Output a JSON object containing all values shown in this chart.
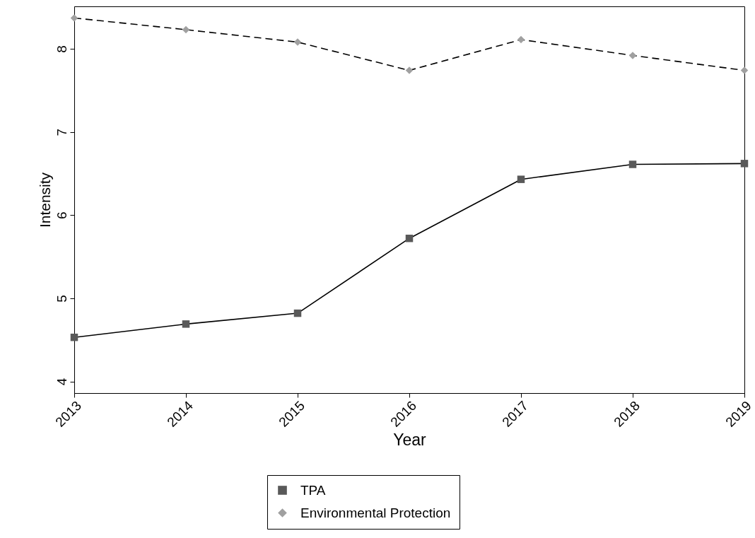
{
  "chart_data": {
    "type": "line",
    "xlabel": "Year",
    "ylabel": "Intensity",
    "x": [
      2013,
      2014,
      2015,
      2016,
      2017,
      2018,
      2019
    ],
    "series": [
      {
        "name": "TPA",
        "color": "#595959",
        "marker": "square",
        "line_style": "solid",
        "values": [
          4.53,
          4.69,
          4.82,
          5.72,
          6.43,
          6.61,
          6.62
        ]
      },
      {
        "name": "Environmental Protection",
        "color": "#a0a0a0",
        "marker": "diamond",
        "line_style": "dashed",
        "values": [
          8.37,
          8.23,
          8.08,
          7.74,
          8.11,
          7.92,
          7.74
        ]
      }
    ],
    "xlim": [
      2013,
      2019
    ],
    "xticks": [
      2013,
      2014,
      2015,
      2016,
      2017,
      2018,
      2019
    ],
    "ylim": [
      3.86,
      8.51
    ],
    "yticks": [
      4,
      5,
      6,
      7,
      8
    ],
    "grid": false,
    "legend": "bottom"
  }
}
